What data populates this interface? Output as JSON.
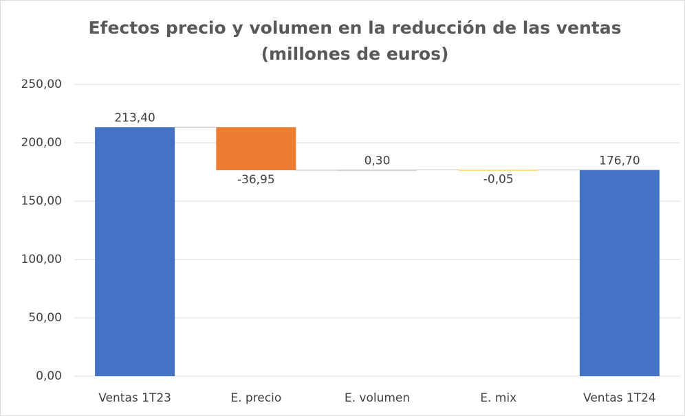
{
  "chart_data": {
    "type": "waterfall",
    "title": "Efectos precio y volumen en la reducción de las ventas",
    "subtitle": "(millones de euros)",
    "categories": [
      "Ventas 1T23",
      "E. precio",
      "E. volumen",
      "E. mix",
      "Ventas 1T24"
    ],
    "values": [
      213.4,
      -36.95,
      0.3,
      -0.05,
      176.7
    ],
    "value_labels": [
      "213,40",
      "-36,95",
      "0,30",
      "-0,05",
      "176,70"
    ],
    "totals": [
      true,
      false,
      false,
      false,
      true
    ],
    "colors": [
      "#4472c4",
      "#ed7d31",
      "#a5a5a5",
      "#ffc000",
      "#4472c4"
    ],
    "ylim": [
      0,
      250
    ],
    "yticks": [
      {
        "value": 0,
        "label": "0,00"
      },
      {
        "value": 50,
        "label": "50,00"
      },
      {
        "value": 100,
        "label": "100,00"
      },
      {
        "value": 150,
        "label": "150,00"
      },
      {
        "value": 200,
        "label": "200,00"
      },
      {
        "value": 250,
        "label": "250,00"
      }
    ],
    "grid": true
  }
}
